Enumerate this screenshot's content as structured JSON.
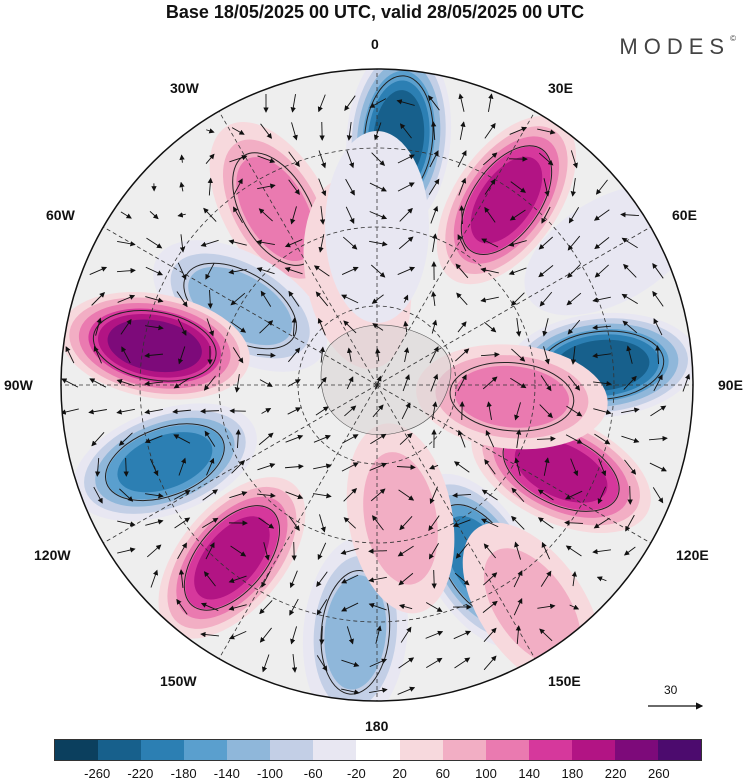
{
  "title": "Base 18/05/2025 00 UTC, valid 28/05/2025 00 UTC",
  "brand": "MODES",
  "brand_mark": "©",
  "longitude_labels": {
    "lon_0": "0",
    "lon_30e": "30E",
    "lon_60e": "60E",
    "lon_90e": "90E",
    "lon_120e": "120E",
    "lon_150e": "150E",
    "lon_180": "180",
    "lon_150w": "150W",
    "lon_120w": "120W",
    "lon_90w": "90W",
    "lon_60w": "60W",
    "lon_30w": "30W"
  },
  "reference_vector": "30",
  "colorbar": {
    "colors": [
      "#0b3f5e",
      "#17608c",
      "#2c7fb3",
      "#5a9fce",
      "#8fb7da",
      "#c3cfe6",
      "#e8e7f2",
      "#ffffff",
      "#f7d9dd",
      "#f2aec4",
      "#ea7ab0",
      "#d6389c",
      "#b21484",
      "#7d0a7a",
      "#4c0b6e"
    ],
    "ticks": [
      "-260",
      "-220",
      "-180",
      "-140",
      "-100",
      "-60",
      "-20",
      "20",
      "60",
      "100",
      "140",
      "180",
      "220",
      "260"
    ]
  },
  "map": {
    "projection": "south-polar stereographic",
    "anomalies": [
      {
        "lon": 5,
        "lat": -35,
        "value": -230
      },
      {
        "lon": 35,
        "lat": -40,
        "value": 200
      },
      {
        "lon": -30,
        "lat": -45,
        "value": 110
      },
      {
        "lon": -60,
        "lat": -55,
        "value": -120
      },
      {
        "lon": -80,
        "lat": -40,
        "value": 240
      },
      {
        "lon": -110,
        "lat": -40,
        "value": -190
      },
      {
        "lon": -140,
        "lat": -40,
        "value": 210
      },
      {
        "lon": -175,
        "lat": -35,
        "value": -100
      },
      {
        "lon": 85,
        "lat": -40,
        "value": -230
      },
      {
        "lon": 115,
        "lat": -45,
        "value": 190
      },
      {
        "lon": 150,
        "lat": -45,
        "value": -190
      },
      {
        "lon": 145,
        "lat": -30,
        "value": 60
      },
      {
        "lon": 60,
        "lat": -30,
        "value": -40
      },
      {
        "lon": 95,
        "lat": -60,
        "value": 100
      },
      {
        "lon": 170,
        "lat": -60,
        "value": 90
      },
      {
        "lon": -10,
        "lat": -65,
        "value": 40
      },
      {
        "lon": 0,
        "lat": -55,
        "value": -40
      }
    ]
  }
}
